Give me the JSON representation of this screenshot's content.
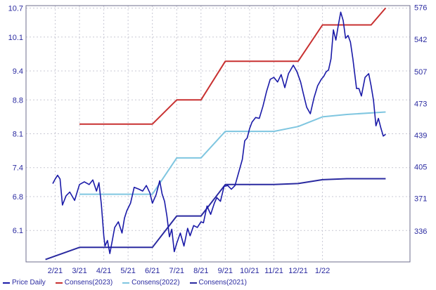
{
  "chart_data": {
    "type": "line",
    "x_labels": [
      "2/21",
      "3/21",
      "4/21",
      "5/21",
      "6/21",
      "7/21",
      "8/21",
      "9/21",
      "10/21",
      "11/21",
      "12/21",
      "1/22"
    ],
    "left_axis": {
      "ticks": [
        "6.1",
        "6.8",
        "7.4",
        "8.1",
        "8.8",
        "9.4",
        "10.1",
        "10.7"
      ],
      "range": [
        5.45,
        10.75
      ]
    },
    "right_axis": {
      "ticks": [
        "336",
        "371",
        "405",
        "439",
        "473",
        "507",
        "542",
        "576"
      ],
      "range": [
        303,
        578
      ]
    },
    "grid": true,
    "legend_position": "bottom-left",
    "series": [
      {
        "name": "Price Daily",
        "axis": "right",
        "color": "#1a1aa8",
        "points": [
          [
            1.9,
            387
          ],
          [
            2.0,
            392
          ],
          [
            2.1,
            396
          ],
          [
            2.2,
            392
          ],
          [
            2.3,
            364
          ],
          [
            2.45,
            374
          ],
          [
            2.6,
            378
          ],
          [
            2.8,
            369
          ],
          [
            3.0,
            386
          ],
          [
            3.2,
            389
          ],
          [
            3.4,
            386
          ],
          [
            3.55,
            391
          ],
          [
            3.7,
            379
          ],
          [
            3.8,
            388
          ],
          [
            3.9,
            365
          ],
          [
            4.0,
            331
          ],
          [
            4.05,
            320
          ],
          [
            4.15,
            326
          ],
          [
            4.25,
            312
          ],
          [
            4.35,
            326
          ],
          [
            4.45,
            340
          ],
          [
            4.6,
            346
          ],
          [
            4.75,
            334
          ],
          [
            4.85,
            350
          ],
          [
            4.95,
            358
          ],
          [
            5.1,
            366
          ],
          [
            5.25,
            383
          ],
          [
            5.45,
            381
          ],
          [
            5.6,
            379
          ],
          [
            5.75,
            385
          ],
          [
            5.9,
            377
          ],
          [
            6.0,
            366
          ],
          [
            6.15,
            375
          ],
          [
            6.3,
            390
          ],
          [
            6.4,
            376
          ],
          [
            6.5,
            368
          ],
          [
            6.6,
            352
          ],
          [
            6.7,
            330
          ],
          [
            6.8,
            338
          ],
          [
            6.9,
            314
          ],
          [
            7.0,
            323
          ],
          [
            7.15,
            334
          ],
          [
            7.3,
            320
          ],
          [
            7.45,
            339
          ],
          [
            7.55,
            331
          ],
          [
            7.7,
            342
          ],
          [
            7.85,
            340
          ],
          [
            8.0,
            346
          ],
          [
            8.1,
            345
          ],
          [
            8.25,
            363
          ],
          [
            8.4,
            354
          ],
          [
            8.55,
            366
          ],
          [
            8.65,
            372
          ],
          [
            8.8,
            368
          ],
          [
            8.95,
            384
          ],
          [
            9.1,
            385
          ],
          [
            9.25,
            381
          ],
          [
            9.4,
            385
          ],
          [
            9.55,
            399
          ],
          [
            9.7,
            413
          ],
          [
            9.8,
            433
          ],
          [
            9.9,
            436
          ],
          [
            10.0,
            446
          ],
          [
            10.1,
            453
          ],
          [
            10.25,
            458
          ],
          [
            10.4,
            457
          ],
          [
            10.55,
            470
          ],
          [
            10.7,
            486
          ],
          [
            10.85,
            499
          ],
          [
            11.0,
            501
          ],
          [
            11.15,
            496
          ],
          [
            11.3,
            504
          ],
          [
            11.45,
            490
          ],
          [
            11.6,
            505
          ],
          [
            11.8,
            514
          ],
          [
            11.95,
            507
          ],
          [
            12.1,
            496
          ],
          [
            12.2,
            485
          ],
          [
            12.35,
            469
          ],
          [
            12.5,
            462
          ],
          [
            12.65,
            479
          ],
          [
            12.8,
            492
          ],
          [
            12.95,
            499
          ],
          [
            13.05,
            502
          ],
          [
            13.15,
            507
          ],
          [
            13.25,
            509
          ],
          [
            13.35,
            521
          ],
          [
            13.45,
            552
          ],
          [
            13.55,
            541
          ],
          [
            13.65,
            557
          ],
          [
            13.75,
            571
          ],
          [
            13.85,
            562
          ],
          [
            13.95,
            543
          ],
          [
            14.05,
            546
          ],
          [
            14.15,
            539
          ],
          [
            14.25,
            521
          ],
          [
            14.4,
            489
          ],
          [
            14.5,
            489
          ],
          [
            14.6,
            481
          ],
          [
            14.75,
            501
          ],
          [
            14.9,
            505
          ],
          [
            15.0,
            492
          ],
          [
            15.1,
            476
          ],
          [
            15.2,
            449
          ],
          [
            15.3,
            457
          ],
          [
            15.4,
            447
          ],
          [
            15.5,
            438
          ],
          [
            15.6,
            440
          ]
        ]
      },
      {
        "name": "Consens(2023)",
        "axis": "left",
        "color": "#c83030",
        "points": [
          [
            3,
            8.3
          ],
          [
            6,
            8.3
          ],
          [
            7,
            8.8
          ],
          [
            8,
            8.8
          ],
          [
            9,
            9.6
          ],
          [
            12,
            9.6
          ],
          [
            13,
            10.35
          ],
          [
            15,
            10.35
          ],
          [
            15.6,
            10.7
          ]
        ]
      },
      {
        "name": "Consens(2022)",
        "axis": "left",
        "color": "#7fc6e0",
        "points": [
          [
            3,
            6.85
          ],
          [
            6,
            6.85
          ],
          [
            7,
            7.6
          ],
          [
            8,
            7.6
          ],
          [
            9,
            8.15
          ],
          [
            11,
            8.15
          ],
          [
            12,
            8.25
          ],
          [
            13,
            8.45
          ],
          [
            14,
            8.5
          ],
          [
            15.6,
            8.55
          ]
        ]
      },
      {
        "name": "Consens(2021)",
        "axis": "left",
        "color": "#2a2aa0",
        "points": [
          [
            1.6,
            5.5
          ],
          [
            3,
            5.75
          ],
          [
            6,
            5.75
          ],
          [
            7,
            6.4
          ],
          [
            8,
            6.4
          ],
          [
            9,
            7.05
          ],
          [
            11,
            7.05
          ],
          [
            12,
            7.07
          ],
          [
            13,
            7.15
          ],
          [
            14,
            7.17
          ],
          [
            15.6,
            7.17
          ]
        ]
      }
    ]
  }
}
